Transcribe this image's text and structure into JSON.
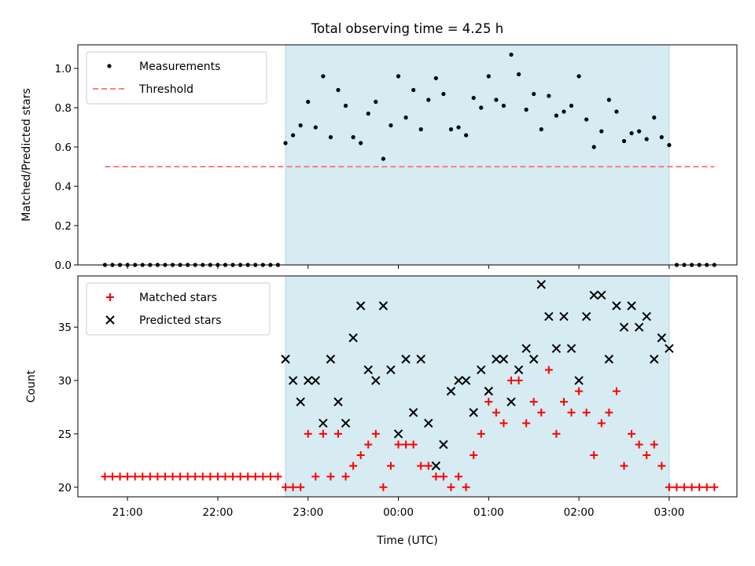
{
  "title": "Total observing time = 4.25 h",
  "colors": {
    "span": "#add8e6",
    "measure": "#000000",
    "threshold": "#ff7f7f",
    "matched": "#ff0000",
    "predicted": "#000000"
  },
  "chart_data": [
    {
      "type": "scatter",
      "ylabel": "Matched/Predicted stars",
      "xlabel": "",
      "xlim": [
        "20:27",
        "03:45"
      ],
      "ylim": [
        0,
        1.12
      ],
      "yticks": [
        0.0,
        0.2,
        0.4,
        0.6,
        0.8,
        1.0
      ],
      "ytick_labels": [
        "0.0",
        "0.2",
        "0.4",
        "0.6",
        "0.8",
        "1.0"
      ],
      "xticks": [
        "21:00",
        "22:00",
        "23:00",
        "00:00",
        "01:00",
        "02:00",
        "03:00"
      ],
      "shaded_span": [
        "22:45",
        "03:00"
      ],
      "legend_position": "upper left",
      "legend": [
        "Measurements",
        "Threshold"
      ],
      "threshold": {
        "name": "Threshold",
        "y": 0.5,
        "x_range": [
          "20:45",
          "03:30"
        ]
      },
      "series": [
        {
          "name": "Measurements",
          "marker": "dot",
          "points": [
            [
              "20:45",
              0
            ],
            [
              "20:50",
              0
            ],
            [
              "20:55",
              0
            ],
            [
              "21:00",
              0
            ],
            [
              "21:05",
              0
            ],
            [
              "21:10",
              0
            ],
            [
              "21:15",
              0
            ],
            [
              "21:20",
              0
            ],
            [
              "21:25",
              0
            ],
            [
              "21:30",
              0
            ],
            [
              "21:35",
              0
            ],
            [
              "21:40",
              0
            ],
            [
              "21:45",
              0
            ],
            [
              "21:50",
              0
            ],
            [
              "21:55",
              0
            ],
            [
              "22:00",
              0
            ],
            [
              "22:05",
              0
            ],
            [
              "22:10",
              0
            ],
            [
              "22:15",
              0
            ],
            [
              "22:20",
              0
            ],
            [
              "22:25",
              0
            ],
            [
              "22:30",
              0
            ],
            [
              "22:35",
              0
            ],
            [
              "22:40",
              0
            ],
            [
              "22:45",
              0.62
            ],
            [
              "22:50",
              0.66
            ],
            [
              "22:55",
              0.71
            ],
            [
              "23:00",
              0.83
            ],
            [
              "23:05",
              0.7
            ],
            [
              "23:10",
              0.96
            ],
            [
              "23:15",
              0.65
            ],
            [
              "23:20",
              0.89
            ],
            [
              "23:25",
              0.81
            ],
            [
              "23:30",
              0.65
            ],
            [
              "23:35",
              0.62
            ],
            [
              "23:40",
              0.77
            ],
            [
              "23:45",
              0.83
            ],
            [
              "23:50",
              0.54
            ],
            [
              "23:55",
              0.71
            ],
            [
              "00:00",
              0.96
            ],
            [
              "00:05",
              0.75
            ],
            [
              "00:10",
              0.89
            ],
            [
              "00:15",
              0.69
            ],
            [
              "00:20",
              0.84
            ],
            [
              "00:25",
              0.95
            ],
            [
              "00:30",
              0.87
            ],
            [
              "00:35",
              0.69
            ],
            [
              "00:40",
              0.7
            ],
            [
              "00:45",
              0.66
            ],
            [
              "00:50",
              0.85
            ],
            [
              "00:55",
              0.8
            ],
            [
              "01:00",
              0.96
            ],
            [
              "01:05",
              0.84
            ],
            [
              "01:10",
              0.81
            ],
            [
              "01:15",
              1.07
            ],
            [
              "01:20",
              0.97
            ],
            [
              "01:25",
              0.79
            ],
            [
              "01:30",
              0.87
            ],
            [
              "01:35",
              0.69
            ],
            [
              "01:40",
              0.86
            ],
            [
              "01:45",
              0.76
            ],
            [
              "01:50",
              0.78
            ],
            [
              "01:55",
              0.81
            ],
            [
              "02:00",
              0.96
            ],
            [
              "02:05",
              0.74
            ],
            [
              "02:10",
              0.6
            ],
            [
              "02:15",
              0.68
            ],
            [
              "02:20",
              0.84
            ],
            [
              "02:25",
              0.78
            ],
            [
              "02:30",
              0.63
            ],
            [
              "02:35",
              0.67
            ],
            [
              "02:40",
              0.68
            ],
            [
              "02:45",
              0.64
            ],
            [
              "02:50",
              0.75
            ],
            [
              "02:55",
              0.65
            ],
            [
              "03:00",
              0.61
            ],
            [
              "03:05",
              0
            ],
            [
              "03:10",
              0
            ],
            [
              "03:15",
              0
            ],
            [
              "03:20",
              0
            ],
            [
              "03:25",
              0
            ],
            [
              "03:30",
              0
            ]
          ]
        }
      ]
    },
    {
      "type": "scatter",
      "ylabel": "Count",
      "xlabel": "Time (UTC)",
      "xlim": [
        "20:27",
        "03:45"
      ],
      "ylim": [
        19.1,
        39.8
      ],
      "yticks": [
        20,
        25,
        30,
        35
      ],
      "ytick_labels": [
        "20",
        "25",
        "30",
        "35"
      ],
      "xticks": [
        "21:00",
        "22:00",
        "23:00",
        "00:00",
        "01:00",
        "02:00",
        "03:00"
      ],
      "xtick_labels": [
        "21:00",
        "22:00",
        "23:00",
        "00:00",
        "01:00",
        "02:00",
        "03:00"
      ],
      "shaded_span": [
        "22:45",
        "03:00"
      ],
      "legend_position": "upper left",
      "legend": [
        "Matched stars",
        "Predicted stars"
      ],
      "series": [
        {
          "name": "Matched stars",
          "marker": "plus",
          "points": [
            [
              "20:45",
              21
            ],
            [
              "20:50",
              21
            ],
            [
              "20:55",
              21
            ],
            [
              "21:00",
              21
            ],
            [
              "21:05",
              21
            ],
            [
              "21:10",
              21
            ],
            [
              "21:15",
              21
            ],
            [
              "21:20",
              21
            ],
            [
              "21:25",
              21
            ],
            [
              "21:30",
              21
            ],
            [
              "21:35",
              21
            ],
            [
              "21:40",
              21
            ],
            [
              "21:45",
              21
            ],
            [
              "21:50",
              21
            ],
            [
              "21:55",
              21
            ],
            [
              "22:00",
              21
            ],
            [
              "22:05",
              21
            ],
            [
              "22:10",
              21
            ],
            [
              "22:15",
              21
            ],
            [
              "22:20",
              21
            ],
            [
              "22:25",
              21
            ],
            [
              "22:30",
              21
            ],
            [
              "22:35",
              21
            ],
            [
              "22:40",
              21
            ],
            [
              "22:45",
              20
            ],
            [
              "22:50",
              20
            ],
            [
              "22:55",
              20
            ],
            [
              "23:00",
              25
            ],
            [
              "23:05",
              21
            ],
            [
              "23:10",
              25
            ],
            [
              "23:15",
              21
            ],
            [
              "23:20",
              25
            ],
            [
              "23:25",
              21
            ],
            [
              "23:30",
              22
            ],
            [
              "23:35",
              23
            ],
            [
              "23:40",
              24
            ],
            [
              "23:45",
              25
            ],
            [
              "23:50",
              20
            ],
            [
              "23:55",
              22
            ],
            [
              "00:00",
              24
            ],
            [
              "00:05",
              24
            ],
            [
              "00:10",
              24
            ],
            [
              "00:15",
              22
            ],
            [
              "00:20",
              22
            ],
            [
              "00:25",
              21
            ],
            [
              "00:30",
              21
            ],
            [
              "00:35",
              20
            ],
            [
              "00:40",
              21
            ],
            [
              "00:45",
              20
            ],
            [
              "00:50",
              23
            ],
            [
              "00:55",
              25
            ],
            [
              "01:00",
              28
            ],
            [
              "01:05",
              27
            ],
            [
              "01:10",
              26
            ],
            [
              "01:15",
              30
            ],
            [
              "01:20",
              30
            ],
            [
              "01:25",
              26
            ],
            [
              "01:30",
              28
            ],
            [
              "01:35",
              27
            ],
            [
              "01:40",
              31
            ],
            [
              "01:45",
              25
            ],
            [
              "01:50",
              28
            ],
            [
              "01:55",
              27
            ],
            [
              "02:00",
              29
            ],
            [
              "02:05",
              27
            ],
            [
              "02:10",
              23
            ],
            [
              "02:15",
              26
            ],
            [
              "02:20",
              27
            ],
            [
              "02:25",
              29
            ],
            [
              "02:30",
              22
            ],
            [
              "02:35",
              25
            ],
            [
              "02:40",
              24
            ],
            [
              "02:45",
              23
            ],
            [
              "02:50",
              24
            ],
            [
              "02:55",
              22
            ],
            [
              "03:00",
              20
            ],
            [
              "03:05",
              20
            ],
            [
              "03:10",
              20
            ],
            [
              "03:15",
              20
            ],
            [
              "03:20",
              20
            ],
            [
              "03:25",
              20
            ],
            [
              "03:30",
              20
            ]
          ]
        },
        {
          "name": "Predicted stars",
          "marker": "x",
          "points": [
            [
              "22:45",
              32
            ],
            [
              "22:50",
              30
            ],
            [
              "22:55",
              28
            ],
            [
              "23:00",
              30
            ],
            [
              "23:05",
              30
            ],
            [
              "23:10",
              26
            ],
            [
              "23:15",
              32
            ],
            [
              "23:20",
              28
            ],
            [
              "23:25",
              26
            ],
            [
              "23:30",
              34
            ],
            [
              "23:35",
              37
            ],
            [
              "23:40",
              31
            ],
            [
              "23:45",
              30
            ],
            [
              "23:50",
              37
            ],
            [
              "23:55",
              31
            ],
            [
              "00:00",
              25
            ],
            [
              "00:05",
              32
            ],
            [
              "00:10",
              27
            ],
            [
              "00:15",
              32
            ],
            [
              "00:20",
              26
            ],
            [
              "00:25",
              22
            ],
            [
              "00:30",
              24
            ],
            [
              "00:35",
              29
            ],
            [
              "00:40",
              30
            ],
            [
              "00:45",
              30
            ],
            [
              "00:50",
              27
            ],
            [
              "00:55",
              31
            ],
            [
              "01:00",
              29
            ],
            [
              "01:05",
              32
            ],
            [
              "01:10",
              32
            ],
            [
              "01:15",
              28
            ],
            [
              "01:20",
              31
            ],
            [
              "01:25",
              33
            ],
            [
              "01:30",
              32
            ],
            [
              "01:35",
              39
            ],
            [
              "01:40",
              36
            ],
            [
              "01:45",
              33
            ],
            [
              "01:50",
              36
            ],
            [
              "01:55",
              33
            ],
            [
              "02:00",
              30
            ],
            [
              "02:05",
              36
            ],
            [
              "02:10",
              38
            ],
            [
              "02:15",
              38
            ],
            [
              "02:20",
              32
            ],
            [
              "02:25",
              37
            ],
            [
              "02:30",
              35
            ],
            [
              "02:35",
              37
            ],
            [
              "02:40",
              35
            ],
            [
              "02:45",
              36
            ],
            [
              "02:50",
              32
            ],
            [
              "02:55",
              34
            ],
            [
              "03:00",
              33
            ]
          ]
        }
      ]
    }
  ]
}
